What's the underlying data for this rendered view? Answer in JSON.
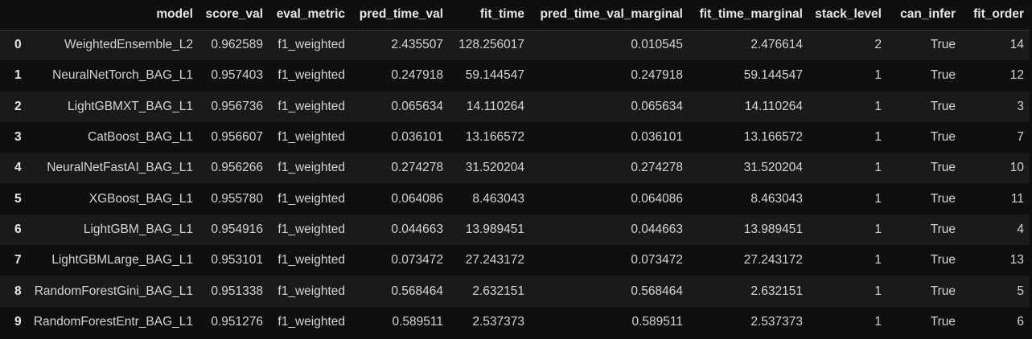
{
  "columns": [
    "",
    "model",
    "score_val",
    "eval_metric",
    "pred_time_val",
    "fit_time",
    "pred_time_val_marginal",
    "fit_time_marginal",
    "stack_level",
    "can_infer",
    "fit_order"
  ],
  "rows": [
    [
      "0",
      "WeightedEnsemble_L2",
      "0.962589",
      "f1_weighted",
      "2.435507",
      "128.256017",
      "0.010545",
      "2.476614",
      "2",
      "True",
      "14"
    ],
    [
      "1",
      "NeuralNetTorch_BAG_L1",
      "0.957403",
      "f1_weighted",
      "0.247918",
      "59.144547",
      "0.247918",
      "59.144547",
      "1",
      "True",
      "12"
    ],
    [
      "2",
      "LightGBMXT_BAG_L1",
      "0.956736",
      "f1_weighted",
      "0.065634",
      "14.110264",
      "0.065634",
      "14.110264",
      "1",
      "True",
      "3"
    ],
    [
      "3",
      "CatBoost_BAG_L1",
      "0.956607",
      "f1_weighted",
      "0.036101",
      "13.166572",
      "0.036101",
      "13.166572",
      "1",
      "True",
      "7"
    ],
    [
      "4",
      "NeuralNetFastAI_BAG_L1",
      "0.956266",
      "f1_weighted",
      "0.274278",
      "31.520204",
      "0.274278",
      "31.520204",
      "1",
      "True",
      "10"
    ],
    [
      "5",
      "XGBoost_BAG_L1",
      "0.955780",
      "f1_weighted",
      "0.064086",
      "8.463043",
      "0.064086",
      "8.463043",
      "1",
      "True",
      "11"
    ],
    [
      "6",
      "LightGBM_BAG_L1",
      "0.954916",
      "f1_weighted",
      "0.044663",
      "13.989451",
      "0.044663",
      "13.989451",
      "1",
      "True",
      "4"
    ],
    [
      "7",
      "LightGBMLarge_BAG_L1",
      "0.953101",
      "f1_weighted",
      "0.073472",
      "27.243172",
      "0.073472",
      "27.243172",
      "1",
      "True",
      "13"
    ],
    [
      "8",
      "RandomForestGini_BAG_L1",
      "0.951338",
      "f1_weighted",
      "0.568464",
      "2.632151",
      "0.568464",
      "2.632151",
      "1",
      "True",
      "5"
    ],
    [
      "9",
      "RandomForestEntr_BAG_L1",
      "0.951276",
      "f1_weighted",
      "0.589511",
      "2.537373",
      "0.589511",
      "2.537373",
      "1",
      "True",
      "6"
    ]
  ]
}
